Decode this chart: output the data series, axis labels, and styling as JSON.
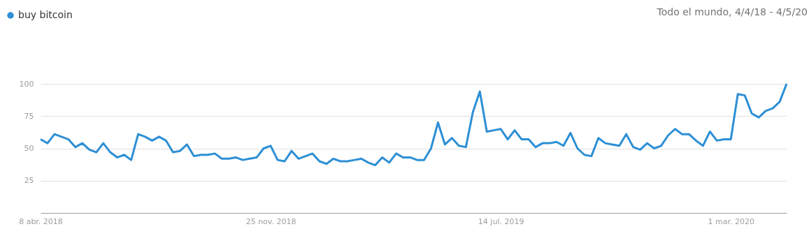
{
  "chart_data": {
    "type": "line",
    "categories": [
      "8 abr. 2018",
      null,
      null,
      null,
      null,
      null,
      null,
      null,
      null,
      null,
      null,
      null,
      null,
      null,
      null,
      null,
      null,
      null,
      null,
      null,
      null,
      null,
      null,
      null,
      null,
      null,
      null,
      null,
      null,
      null,
      null,
      null,
      null,
      "25 nov. 2018",
      null,
      null,
      null,
      null,
      null,
      null,
      null,
      null,
      null,
      null,
      null,
      null,
      null,
      null,
      null,
      null,
      null,
      null,
      null,
      null,
      null,
      null,
      null,
      null,
      null,
      null,
      null,
      null,
      null,
      null,
      null,
      null,
      "14 jul. 2019",
      null,
      null,
      null,
      null,
      null,
      null,
      null,
      null,
      null,
      null,
      null,
      null,
      null,
      null,
      null,
      null,
      null,
      null,
      null,
      null,
      null,
      null,
      null,
      null,
      null,
      null,
      null,
      null,
      null,
      null,
      null,
      null,
      "1 mar. 2020",
      null,
      null,
      null,
      null,
      null,
      null,
      null,
      null
    ],
    "series": [
      {
        "name": "buy bitcoin",
        "color": "#2d8fd5",
        "values": [
          57,
          54,
          61,
          59,
          57,
          51,
          54,
          49,
          47,
          54,
          47,
          43,
          45,
          41,
          61,
          59,
          56,
          59,
          56,
          47,
          48,
          53,
          44,
          45,
          45,
          46,
          42,
          42,
          43,
          41,
          42,
          43,
          50,
          52,
          41,
          40,
          48,
          42,
          44,
          46,
          40,
          38,
          42,
          40,
          40,
          41,
          42,
          39,
          37,
          43,
          39,
          46,
          43,
          43,
          41,
          41,
          50,
          70,
          53,
          58,
          52,
          51,
          78,
          94,
          63,
          64,
          65,
          57,
          64,
          57,
          57,
          51,
          54,
          54,
          55,
          52,
          62,
          50,
          45,
          44,
          58,
          54,
          53,
          52,
          61,
          51,
          49,
          54,
          50,
          52,
          60,
          65,
          61,
          61,
          56,
          52,
          63,
          56,
          57,
          57,
          92,
          91,
          77,
          74,
          79,
          81,
          86,
          100
        ]
      }
    ],
    "ylim": [
      0,
      100
    ],
    "yticks": [
      25,
      50,
      75,
      100
    ],
    "grid": "y",
    "legend": "top left",
    "annotations": [
      "Todo el mundo, 4/4/18 - 4/5/20"
    ]
  }
}
